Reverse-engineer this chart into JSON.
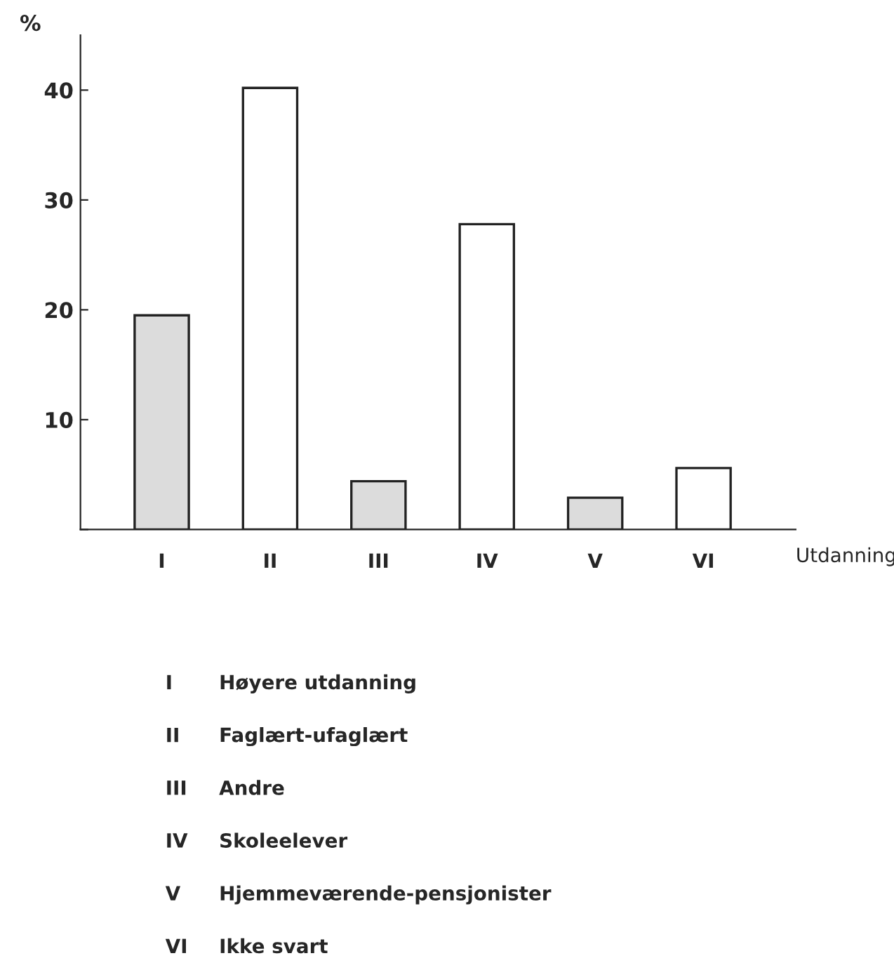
{
  "chart_data": {
    "type": "bar",
    "ylabel": "%",
    "xlabel": "Utdanning",
    "categories": [
      "I",
      "II",
      "III",
      "IV",
      "V",
      "VI"
    ],
    "values": [
      19.5,
      40.2,
      4.4,
      27.8,
      2.9,
      5.6
    ],
    "colors": [
      "#dcdcdc",
      "#ffffff",
      "#dcdcdc",
      "#ffffff",
      "#dcdcdc",
      "#ffffff"
    ],
    "ylim": [
      0,
      45
    ],
    "yticks": [
      {
        "value": 0,
        "label": null
      },
      10,
      20,
      30,
      40
    ],
    "grid": false,
    "legend": false,
    "annotations": [
      "I",
      "Høyere utdanning",
      "II",
      "Faglært-ufaglært",
      "III",
      "Andre",
      "IV",
      "Skoleelever",
      "V",
      "Hjemmeværende-pensjonister",
      "VI",
      "Ikke svart"
    ]
  }
}
